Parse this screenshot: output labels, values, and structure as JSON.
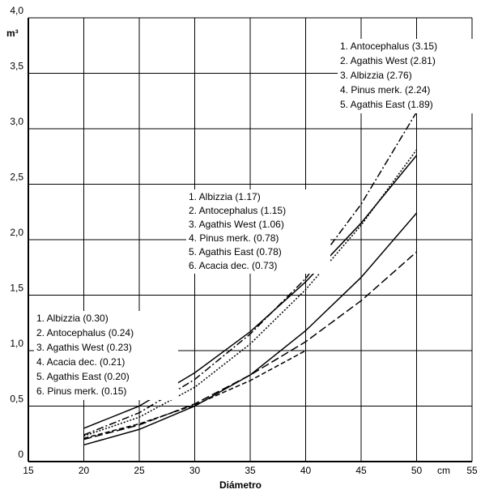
{
  "chart_data": {
    "type": "line",
    "y_unit_label": "m³",
    "x_unit_label": "cm",
    "x_label": "Diámetro",
    "x": [
      20,
      25,
      30,
      35,
      40,
      45,
      50
    ],
    "xlim": [
      15,
      55
    ],
    "xticks": [
      15,
      20,
      25,
      30,
      35,
      40,
      45,
      50,
      55
    ],
    "ylim": [
      0,
      4
    ],
    "yticks": [
      0,
      {
        "value": 0.5,
        "label": "0,5"
      },
      {
        "value": 1,
        "label": "1,0"
      },
      {
        "value": 1.5,
        "label": "1,5"
      },
      {
        "value": 2,
        "label": "2,0"
      },
      {
        "value": 2.5,
        "label": "2,5"
      },
      {
        "value": 3,
        "label": "3,0"
      },
      {
        "value": 3.5,
        "label": "3,5"
      },
      {
        "value": 4,
        "label": "4,0"
      }
    ],
    "grid": true,
    "series": [
      {
        "name": "Antocephalus",
        "color": "#000000",
        "dash": "9 3 2 3",
        "values": [
          0.24,
          0.44,
          0.74,
          1.15,
          1.65,
          2.32,
          3.15
        ]
      },
      {
        "name": "Agathis West",
        "color": "#000000",
        "dash": "2 2",
        "values": [
          0.23,
          0.4,
          0.67,
          1.06,
          1.55,
          2.13,
          2.81
        ]
      },
      {
        "name": "Albizzia",
        "color": "#000000",
        "dash": "none",
        "values": [
          0.3,
          0.5,
          0.8,
          1.17,
          1.62,
          2.15,
          2.76
        ]
      },
      {
        "name": "Pinus merk.",
        "color": "#000000",
        "dash": "none",
        "values": [
          0.15,
          0.29,
          0.5,
          0.78,
          1.18,
          1.66,
          2.24
        ]
      },
      {
        "name": "Agathis East",
        "color": "#000000",
        "dash": "10 4",
        "values": [
          0.2,
          0.33,
          0.52,
          0.78,
          1.08,
          1.45,
          1.89
        ]
      },
      {
        "name": "Acacia dec.",
        "color": "#000000",
        "dash": "6 3",
        "values": [
          0.21,
          0.34,
          0.51,
          0.73,
          1.0,
          null,
          null
        ]
      }
    ],
    "annotations": [
      [
        "1. Antocephalus (3.15)",
        "2. Agathis West (2.81)",
        "3. Albizzia (2.76)",
        "4. Pinus merk. (2.24)",
        "5. Agathis East (1.89)"
      ],
      [
        "1. Albizzia (1.17)",
        "2. Antocephalus (1.15)",
        "3. Agathis West (1.06)",
        "4. Pinus merk. (0.78)",
        "5. Agathis East (0.78)",
        "6. Acacia dec. (0.73)"
      ],
      [
        "1. Albizzia (0.30)",
        "2. Antocephalus (0.24)",
        "3. Agathis West (0.23)",
        "4. Acacia dec. (0.21)",
        "5. Agathis East (0.20)",
        "6. Pinus merk. (0.15)"
      ]
    ]
  }
}
